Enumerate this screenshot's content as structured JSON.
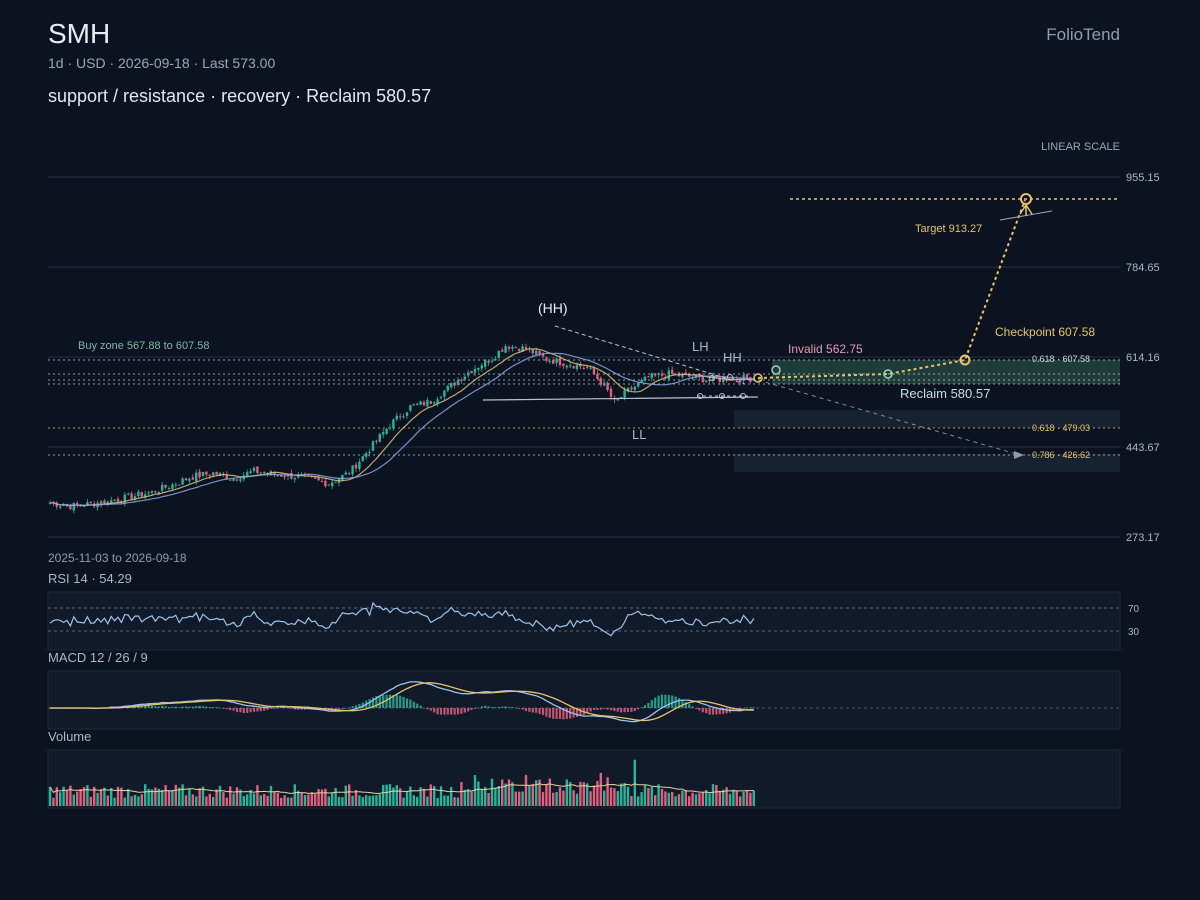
{
  "header": {
    "symbol": "SMH",
    "subtitle": "1d · USD · 2026-09-18 · Last 573.00",
    "description": "support / resistance · recovery · Reclaim 580.57",
    "brand": "FolioTend"
  },
  "chart_data": {
    "type": "candlestick",
    "scale_label": "LINEAR SCALE",
    "y_ticks": [
      955.15,
      784.65,
      614.16,
      443.67,
      273.17
    ],
    "ylim": [
      273.17,
      955.15
    ],
    "date_range": "2025-11-03 to 2026-09-18",
    "last": 573.0,
    "price_path": [
      [
        0,
        338
      ],
      [
        6,
        332
      ],
      [
        12,
        336
      ],
      [
        18,
        342
      ],
      [
        24,
        350
      ],
      [
        30,
        358
      ],
      [
        36,
        372
      ],
      [
        42,
        388
      ],
      [
        48,
        394
      ],
      [
        54,
        384
      ],
      [
        60,
        398
      ],
      [
        66,
        392
      ],
      [
        72,
        388
      ],
      [
        78,
        380
      ],
      [
        82,
        375
      ],
      [
        88,
        395
      ],
      [
        94,
        440
      ],
      [
        100,
        486
      ],
      [
        106,
        520
      ],
      [
        112,
        530
      ],
      [
        118,
        560
      ],
      [
        124,
        590
      ],
      [
        130,
        612
      ],
      [
        134,
        636
      ],
      [
        140,
        630
      ],
      [
        146,
        610
      ],
      [
        152,
        602
      ],
      [
        158,
        594
      ],
      [
        163,
        560
      ],
      [
        166,
        528
      ],
      [
        170,
        550
      ],
      [
        176,
        575
      ],
      [
        182,
        582
      ],
      [
        188,
        577
      ],
      [
        194,
        570
      ],
      [
        200,
        574
      ],
      [
        207,
        573
      ]
    ],
    "annotations": {
      "buy_zone": "Buy zone 567.88 to 607.58",
      "invalid": "Invalid 562.75",
      "checkpoint": "Checkpoint 607.58",
      "target": "Target 913.27",
      "reclaim": "Reclaim 580.57",
      "hh_peak": "(HH)",
      "lh": "LH",
      "hh": "HH",
      "ll": "LL"
    },
    "levels": {
      "target": 913.27,
      "checkpoint": 607.58,
      "buy_zone_low": 567.88,
      "buy_zone_high": 607.58,
      "invalid": 562.75,
      "reclaim": 580.57
    },
    "fib_levels": [
      {
        "label": "0.618 · 607.58",
        "value": 607.58
      },
      {
        "label": "0.618 · 479.03",
        "value": 479.03
      },
      {
        "label": "0.786 · 426.62",
        "value": 426.62
      }
    ],
    "rsi": {
      "label": "RSI 14 · 54.29",
      "value": 54.29,
      "upper": 70,
      "lower": 30
    },
    "macd": {
      "label": "MACD 12 / 26 / 9"
    },
    "volume": {
      "label": "Volume"
    }
  },
  "colors": {
    "background": "#0c1320",
    "up": "#2bb39a",
    "down": "#e0607e",
    "accent": "#e6c36a",
    "ma1": "#d9c27a",
    "ma2": "#8aa7e6",
    "zone": "#2a5a4a",
    "invalid": "#e59ab0"
  }
}
